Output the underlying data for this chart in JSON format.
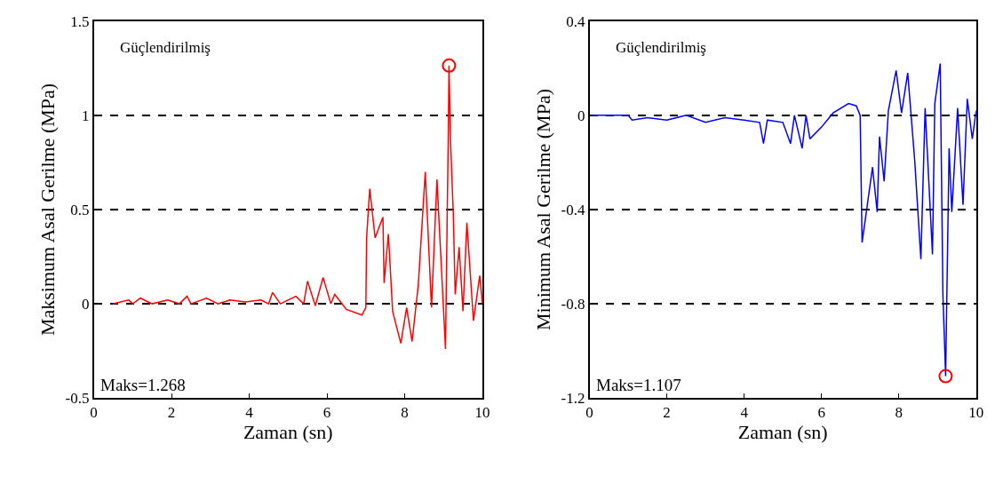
{
  "chart_data": [
    {
      "type": "line",
      "title": "Güçlendirilmiş",
      "xlabel": "Zaman (sn)",
      "ylabel": "Maksimum Asal Gerilme (MPa)",
      "xlim": [
        0,
        10
      ],
      "xticks": [
        0,
        2,
        4,
        6,
        8,
        10
      ],
      "ylim": [
        -0.5,
        1.5
      ],
      "yticks": [
        -0.5,
        0,
        0.5,
        1,
        1.5
      ],
      "grid": "y",
      "marker": "none",
      "series": [
        {
          "color": "#ff0000",
          "x": [
            0.5,
            0.9,
            1.0,
            1.2,
            1.5,
            1.9,
            2.2,
            2.4,
            2.5,
            2.9,
            3.2,
            3.5,
            3.9,
            4.3,
            4.5,
            4.6,
            4.8,
            5.2,
            5.4,
            5.5,
            5.7,
            5.9,
            6.1,
            6.2,
            6.5,
            6.9,
            7.0,
            7.02,
            7.1,
            7.24,
            7.44,
            7.47,
            7.58,
            7.69,
            7.9,
            8.05,
            8.19,
            8.35,
            8.53,
            8.69,
            8.83,
            9.05,
            9.1,
            9.12,
            9.14,
            9.18,
            9.25,
            9.3,
            9.4,
            9.5,
            9.6,
            9.77,
            9.93,
            10.0
          ],
          "values": [
            0,
            0.02,
            0,
            0.03,
            0,
            0.02,
            0,
            0.04,
            0,
            0.03,
            0,
            0.02,
            0.01,
            0.02,
            0,
            0.06,
            0,
            0.04,
            0,
            0.12,
            -0.01,
            0.14,
            0,
            0.05,
            -0.03,
            -0.06,
            -0.02,
            0.35,
            0.61,
            0.35,
            0.46,
            0.11,
            0.37,
            -0.04,
            -0.21,
            -0.02,
            -0.2,
            0.1,
            0.7,
            -0.02,
            0.66,
            -0.24,
            0.57,
            0.86,
            1.264,
            0.86,
            0.48,
            0.05,
            0.3,
            -0.04,
            0.43,
            -0.09,
            0.15,
            0
          ]
        },
        {
          "type": "scatter",
          "marker": "circle",
          "color": "#ff0000",
          "x": [
            9.14
          ],
          "values": [
            1.264
          ]
        }
      ],
      "annotations": [
        "Maks=1.268"
      ]
    },
    {
      "type": "line",
      "title": "Güçlendirilmiş",
      "xlabel": "Zaman (sn)",
      "ylabel": "Minimum Asal Gerilme (MPa)",
      "xlim": [
        0,
        10
      ],
      "xticks": [
        0,
        2,
        4,
        6,
        8,
        10
      ],
      "ylim": [
        -1.2,
        0.4
      ],
      "yticks": [
        -1.2,
        -0.8,
        -0.4,
        0,
        0.4
      ],
      "grid": "y",
      "marker": "none",
      "series": [
        {
          "color": "#0000ff",
          "x": [
            0.0,
            1.0,
            1.1,
            1.5,
            2.0,
            2.5,
            3.0,
            3.5,
            4.0,
            4.4,
            4.5,
            4.6,
            5.0,
            5.2,
            5.3,
            5.5,
            5.6,
            5.7,
            6.0,
            6.3,
            6.7,
            6.9,
            7.0,
            7.05,
            7.32,
            7.44,
            7.5,
            7.62,
            7.73,
            7.93,
            8.07,
            8.23,
            8.41,
            8.57,
            8.68,
            8.87,
            8.93,
            9.07,
            9.14,
            9.21,
            9.3,
            9.37,
            9.52,
            9.66,
            9.77,
            9.9,
            10.0
          ],
          "values": [
            0,
            0,
            -0.02,
            -0.01,
            -0.02,
            0,
            -0.03,
            -0.01,
            -0.02,
            -0.03,
            -0.12,
            -0.02,
            -0.03,
            -0.12,
            0,
            -0.14,
            0,
            -0.1,
            -0.05,
            0.01,
            0.05,
            0.04,
            0.0,
            -0.54,
            -0.22,
            -0.41,
            -0.09,
            -0.28,
            0.02,
            0.19,
            0.01,
            0.18,
            -0.19,
            -0.61,
            0.03,
            -0.59,
            0.05,
            0.22,
            -0.76,
            -1.107,
            -0.14,
            -0.41,
            0.03,
            -0.38,
            0.07,
            -0.1,
            0.02
          ]
        },
        {
          "type": "scatter",
          "marker": "circle",
          "color": "#ff0000",
          "x": [
            9.21
          ],
          "values": [
            -1.107
          ]
        }
      ],
      "annotations": [
        "Maks=1.107"
      ]
    }
  ]
}
